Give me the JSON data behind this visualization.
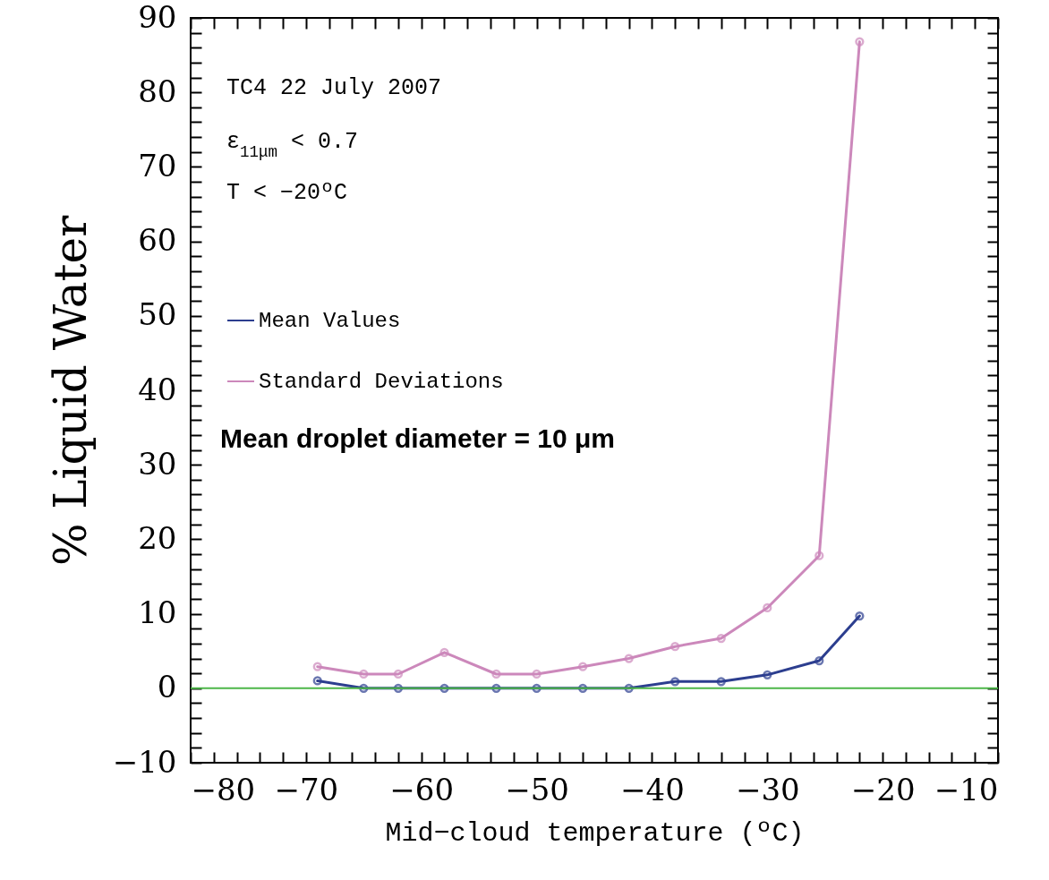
{
  "chart_data": {
    "type": "line",
    "xlabel": "Mid−cloud temperature (ºC)",
    "ylabel": "% Liquid Water",
    "annotations": [
      "TC4 22 July 2007",
      "ε$_{11μm}$ < 0.7",
      "T < −20ºC",
      "Mean droplet diameter = 10 μm"
    ],
    "x": [
      -69,
      -65,
      -62,
      -58,
      -53.5,
      -50,
      -46,
      -42,
      -38,
      -34,
      -30,
      -25.5,
      -22
    ],
    "series": [
      {
        "name": "Mean Values",
        "color": "#2c3e8f",
        "values": [
          1.0,
          0,
          0,
          0,
          0,
          0,
          0,
          0,
          0.9,
          0.9,
          1.8,
          3.7,
          9.7
        ]
      },
      {
        "name": "Standard Deviations",
        "color": "#cc88bb",
        "values": [
          2.9,
          1.9,
          1.9,
          4.8,
          1.9,
          1.9,
          2.9,
          4.0,
          5.6,
          6.7,
          10.8,
          17.8,
          86.8
        ]
      }
    ],
    "marker": "circle",
    "line_style": "solid",
    "legend": "left",
    "ref_lines": [
      {
        "axis": "y",
        "value": 0,
        "color": "#4cb648"
      }
    ],
    "xlim": [
      -80,
      -10
    ],
    "xticks": [
      -80,
      {
        "value": -78,
        "label": null
      },
      {
        "value": -76,
        "label": null
      },
      {
        "value": -74,
        "label": null
      },
      {
        "value": -72,
        "label": null
      },
      -70,
      {
        "value": -68,
        "label": null
      },
      {
        "value": -66,
        "label": null
      },
      {
        "value": -64,
        "label": null
      },
      {
        "value": -62,
        "label": null
      },
      -60,
      {
        "value": -58,
        "label": null
      },
      {
        "value": -56,
        "label": null
      },
      {
        "value": -54,
        "label": null
      },
      {
        "value": -52,
        "label": null
      },
      -50,
      {
        "value": -48,
        "label": null
      },
      {
        "value": -46,
        "label": null
      },
      {
        "value": -44,
        "label": null
      },
      {
        "value": -42,
        "label": null
      },
      -40,
      {
        "value": -38,
        "label": null
      },
      {
        "value": -36,
        "label": null
      },
      {
        "value": -34,
        "label": null
      },
      {
        "value": -32,
        "label": null
      },
      -30,
      {
        "value": -28,
        "label": null
      },
      {
        "value": -26,
        "label": null
      },
      {
        "value": -24,
        "label": null
      },
      {
        "value": -22,
        "label": null
      },
      -20,
      {
        "value": -18,
        "label": null
      },
      {
        "value": -16,
        "label": null
      },
      {
        "value": -14,
        "label": null
      },
      {
        "value": -12,
        "label": null
      },
      -10
    ],
    "ylim": [
      -10,
      90
    ],
    "yticks": [
      -10,
      {
        "value": -8,
        "label": null
      },
      {
        "value": -6,
        "label": null
      },
      {
        "value": -4,
        "label": null
      },
      {
        "value": -2,
        "label": null
      },
      0,
      {
        "value": 2,
        "label": null
      },
      {
        "value": 4,
        "label": null
      },
      {
        "value": 6,
        "label": null
      },
      {
        "value": 8,
        "label": null
      },
      10,
      {
        "value": 12,
        "label": null
      },
      {
        "value": 14,
        "label": null
      },
      {
        "value": 16,
        "label": null
      },
      {
        "value": 18,
        "label": null
      },
      20,
      {
        "value": 22,
        "label": null
      },
      {
        "value": 24,
        "label": null
      },
      {
        "value": 26,
        "label": null
      },
      {
        "value": 28,
        "label": null
      },
      30,
      {
        "value": 32,
        "label": null
      },
      {
        "value": 34,
        "label": null
      },
      {
        "value": 36,
        "label": null
      },
      {
        "value": 38,
        "label": null
      },
      40,
      {
        "value": 42,
        "label": null
      },
      {
        "value": 44,
        "label": null
      },
      {
        "value": 46,
        "label": null
      },
      {
        "value": 48,
        "label": null
      },
      50,
      {
        "value": 52,
        "label": null
      },
      {
        "value": 54,
        "label": null
      },
      {
        "value": 56,
        "label": null
      },
      {
        "value": 58,
        "label": null
      },
      60,
      {
        "value": 62,
        "label": null
      },
      {
        "value": 64,
        "label": null
      },
      {
        "value": 66,
        "label": null
      },
      {
        "value": 68,
        "label": null
      },
      70,
      {
        "value": 72,
        "label": null
      },
      {
        "value": 74,
        "label": null
      },
      {
        "value": 76,
        "label": null
      },
      {
        "value": 78,
        "label": null
      },
      80,
      {
        "value": 82,
        "label": null
      },
      {
        "value": 84,
        "label": null
      },
      {
        "value": 86,
        "label": null
      },
      {
        "value": 88,
        "label": null
      },
      90
    ]
  }
}
